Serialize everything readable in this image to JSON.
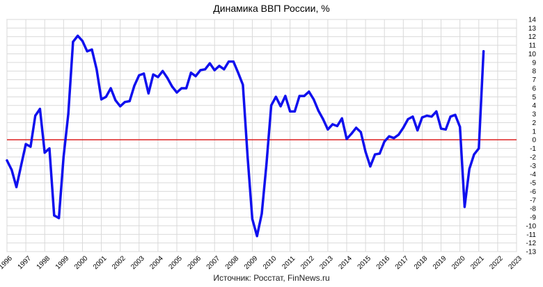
{
  "chart_data": {
    "type": "line",
    "title": "Динамика ВВП России, %",
    "source": "Источник: Росстат, FinNews.ru",
    "xlabel": "",
    "ylabel": "",
    "xlim": [
      1996,
      2023
    ],
    "ylim": [
      -13,
      14
    ],
    "x_ticks": [
      "1996",
      "1997",
      "1998",
      "1999",
      "2000",
      "2001",
      "2002",
      "2003",
      "2004",
      "2005",
      "2006",
      "2007",
      "2008",
      "2009",
      "2010",
      "2011",
      "2012",
      "2013",
      "2014",
      "2015",
      "2016",
      "2017",
      "2018",
      "2019",
      "2020",
      "2021",
      "2022",
      "2023"
    ],
    "y_ticks": [
      14,
      13,
      12,
      11,
      10,
      9,
      8,
      7,
      6,
      5,
      4,
      3,
      2,
      1,
      0,
      -1,
      -2,
      -3,
      -4,
      -5,
      -6,
      -7,
      -8,
      -9,
      -10,
      -11,
      -12,
      -13
    ],
    "grid": true,
    "reference_line": {
      "y": 0,
      "color": "#dd2222"
    },
    "series": [
      {
        "color": "#1010ee",
        "points": [
          [
            1996.0,
            -2.4
          ],
          [
            1996.25,
            -3.5
          ],
          [
            1996.5,
            -5.5
          ],
          [
            1996.75,
            -3.0
          ],
          [
            1997.0,
            -0.5
          ],
          [
            1997.25,
            -0.8
          ],
          [
            1997.5,
            2.8
          ],
          [
            1997.75,
            3.6
          ],
          [
            1998.0,
            -1.5
          ],
          [
            1998.25,
            -1.0
          ],
          [
            1998.5,
            -8.8
          ],
          [
            1998.75,
            -9.1
          ],
          [
            1999.0,
            -2.0
          ],
          [
            1999.25,
            3.0
          ],
          [
            1999.5,
            11.4
          ],
          [
            1999.75,
            12.1
          ],
          [
            2000.0,
            11.5
          ],
          [
            2000.25,
            10.3
          ],
          [
            2000.5,
            10.5
          ],
          [
            2000.75,
            8.2
          ],
          [
            2001.0,
            4.7
          ],
          [
            2001.25,
            5.0
          ],
          [
            2001.5,
            6.0
          ],
          [
            2001.75,
            4.6
          ],
          [
            2002.0,
            3.9
          ],
          [
            2002.25,
            4.4
          ],
          [
            2002.5,
            4.5
          ],
          [
            2002.75,
            6.3
          ],
          [
            2003.0,
            7.5
          ],
          [
            2003.25,
            7.7
          ],
          [
            2003.5,
            5.4
          ],
          [
            2003.75,
            7.6
          ],
          [
            2004.0,
            7.3
          ],
          [
            2004.25,
            8.0
          ],
          [
            2004.5,
            7.2
          ],
          [
            2004.75,
            6.2
          ],
          [
            2005.0,
            5.5
          ],
          [
            2005.25,
            6.0
          ],
          [
            2005.5,
            6.0
          ],
          [
            2005.75,
            7.8
          ],
          [
            2006.0,
            7.4
          ],
          [
            2006.25,
            8.1
          ],
          [
            2006.5,
            8.2
          ],
          [
            2006.75,
            8.9
          ],
          [
            2007.0,
            8.1
          ],
          [
            2007.25,
            8.6
          ],
          [
            2007.5,
            8.2
          ],
          [
            2007.75,
            9.1
          ],
          [
            2008.0,
            9.1
          ],
          [
            2008.25,
            7.8
          ],
          [
            2008.5,
            6.4
          ],
          [
            2008.75,
            -2.0
          ],
          [
            2009.0,
            -9.2
          ],
          [
            2009.25,
            -11.2
          ],
          [
            2009.5,
            -8.6
          ],
          [
            2009.75,
            -2.8
          ],
          [
            2010.0,
            4.0
          ],
          [
            2010.25,
            5.0
          ],
          [
            2010.5,
            3.9
          ],
          [
            2010.75,
            5.1
          ],
          [
            2011.0,
            3.3
          ],
          [
            2011.25,
            3.3
          ],
          [
            2011.5,
            5.1
          ],
          [
            2011.75,
            5.1
          ],
          [
            2012.0,
            5.6
          ],
          [
            2012.25,
            4.7
          ],
          [
            2012.5,
            3.4
          ],
          [
            2012.75,
            2.4
          ],
          [
            2013.0,
            1.2
          ],
          [
            2013.25,
            1.8
          ],
          [
            2013.5,
            1.6
          ],
          [
            2013.75,
            2.5
          ],
          [
            2014.0,
            0.1
          ],
          [
            2014.25,
            0.7
          ],
          [
            2014.5,
            1.4
          ],
          [
            2014.75,
            0.9
          ],
          [
            2015.0,
            -1.4
          ],
          [
            2015.25,
            -3.1
          ],
          [
            2015.5,
            -1.7
          ],
          [
            2015.75,
            -1.6
          ],
          [
            2016.0,
            -0.2
          ],
          [
            2016.25,
            0.4
          ],
          [
            2016.5,
            0.2
          ],
          [
            2016.75,
            0.6
          ],
          [
            2017.0,
            1.4
          ],
          [
            2017.25,
            2.4
          ],
          [
            2017.5,
            2.7
          ],
          [
            2017.75,
            1.1
          ],
          [
            2018.0,
            2.6
          ],
          [
            2018.25,
            2.8
          ],
          [
            2018.5,
            2.7
          ],
          [
            2018.75,
            3.3
          ],
          [
            2019.0,
            1.3
          ],
          [
            2019.25,
            1.2
          ],
          [
            2019.5,
            2.7
          ],
          [
            2019.75,
            2.9
          ],
          [
            2020.0,
            1.5
          ],
          [
            2020.25,
            -7.8
          ],
          [
            2020.5,
            -3.4
          ],
          [
            2020.75,
            -1.7
          ],
          [
            2021.0,
            -1.0
          ],
          [
            2021.25,
            10.3
          ]
        ]
      }
    ]
  }
}
